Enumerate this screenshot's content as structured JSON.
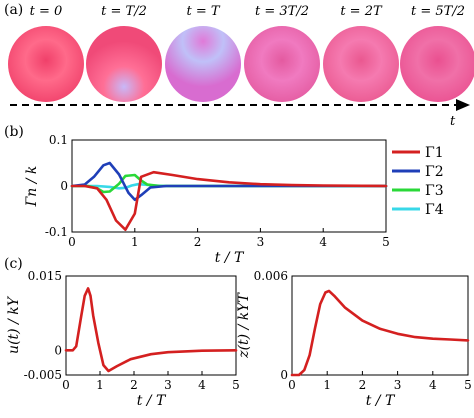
{
  "panel_a": {
    "label": "(a)",
    "time_labels": [
      "t = 0",
      "t = T/2",
      "t = T",
      "t = 3T/2",
      "t = 2T",
      "t = 5T/2"
    ],
    "time_axis_label": "t",
    "spheres": [
      {
        "base": "#f0406a",
        "light": "#ff6a8a",
        "spot": "#f0406a"
      },
      {
        "base": "#f04a78",
        "light": "#ff6f96",
        "spot": "#c8b8f8"
      },
      {
        "base": "#d86cd0",
        "light": "#c0c0f8",
        "spot": "#e07ad8"
      },
      {
        "base": "#e45aa0",
        "light": "#f07ac0",
        "spot": "#e45aa0"
      },
      {
        "base": "#ea5890",
        "light": "#f57ab0",
        "spot": "#ea5890"
      },
      {
        "base": "#ea5090",
        "light": "#f070a8",
        "spot": "#ea5090"
      }
    ]
  },
  "panel_b_label": "(b)",
  "panel_c_label": "(c)",
  "chart_data": [
    {
      "id": "b",
      "type": "line",
      "xlabel": "t / T",
      "ylabel": "Γn / k",
      "xlim": [
        0,
        5
      ],
      "ylim": [
        -0.1,
        0.1
      ],
      "xticks": [
        "0",
        "1",
        "2",
        "3",
        "4",
        "5"
      ],
      "yticks": [
        "0.1",
        "0",
        "-0.1"
      ],
      "legend_position": "right",
      "series": [
        {
          "name": "Γ1",
          "color": "#d42020",
          "x": [
            0,
            0.2,
            0.4,
            0.55,
            0.7,
            0.85,
            1.0,
            1.1,
            1.3,
            1.6,
            2.0,
            2.5,
            3.0,
            3.5,
            4.0,
            5.0
          ],
          "y": [
            0,
            0,
            -0.005,
            -0.03,
            -0.075,
            -0.095,
            -0.06,
            0.02,
            0.03,
            0.024,
            0.015,
            0.008,
            0.004,
            0.002,
            0.001,
            0
          ]
        },
        {
          "name": "Γ2",
          "color": "#1f3fb8",
          "x": [
            0,
            0.2,
            0.35,
            0.5,
            0.6,
            0.75,
            0.9,
            1.0,
            1.1,
            1.25,
            1.5,
            5.0
          ],
          "y": [
            0,
            0.003,
            0.02,
            0.045,
            0.05,
            0.025,
            -0.015,
            -0.03,
            -0.02,
            -0.003,
            0,
            0
          ]
        },
        {
          "name": "Γ3",
          "color": "#2ad838",
          "x": [
            0,
            0.25,
            0.4,
            0.5,
            0.6,
            0.75,
            0.85,
            1.0,
            1.1,
            1.2,
            1.4,
            5.0
          ],
          "y": [
            0,
            0,
            -0.005,
            -0.013,
            -0.012,
            0.005,
            0.022,
            0.024,
            0.012,
            0.003,
            0,
            0
          ]
        },
        {
          "name": "Γ4",
          "color": "#38d8e8",
          "x": [
            0,
            0.4,
            0.6,
            0.75,
            0.85,
            0.95,
            1.05,
            1.15,
            1.3,
            1.5,
            5.0
          ],
          "y": [
            0,
            0,
            -0.002,
            -0.005,
            -0.004,
            0.001,
            0.004,
            0.003,
            0.001,
            0,
            0
          ]
        }
      ]
    },
    {
      "id": "c1",
      "type": "line",
      "xlabel": "t / T",
      "ylabel": "u(t) / kY",
      "xlim": [
        0,
        5
      ],
      "ylim": [
        -0.005,
        0.015
      ],
      "xticks": [
        "0",
        "1",
        "2",
        "3",
        "4",
        "5"
      ],
      "yticks": [
        "0.015",
        "0",
        "-0.005"
      ],
      "series": [
        {
          "name": "",
          "color": "#d42020",
          "x": [
            0,
            0.2,
            0.3,
            0.45,
            0.55,
            0.65,
            0.72,
            0.8,
            0.95,
            1.1,
            1.25,
            1.5,
            1.9,
            2.5,
            3.0,
            4.0,
            5.0
          ],
          "y": [
            0,
            0,
            0.0008,
            0.007,
            0.011,
            0.0125,
            0.011,
            0.007,
            0.0015,
            -0.003,
            -0.0042,
            -0.0032,
            -0.0018,
            -0.0008,
            -0.0004,
            -0.0001,
            0
          ]
        }
      ]
    },
    {
      "id": "c2",
      "type": "line",
      "xlabel": "t / T",
      "ylabel": "z(t) / kYT",
      "xlim": [
        0,
        5
      ],
      "ylim": [
        0,
        0.006
      ],
      "xticks": [
        "0",
        "1",
        "2",
        "3",
        "4",
        "5"
      ],
      "yticks": [
        "0.006",
        "0"
      ],
      "series": [
        {
          "name": "",
          "color": "#d42020",
          "x": [
            0,
            0.2,
            0.35,
            0.5,
            0.65,
            0.8,
            0.95,
            1.05,
            1.2,
            1.5,
            2.0,
            2.5,
            3.0,
            3.5,
            4.0,
            4.5,
            5.0
          ],
          "y": [
            0,
            0,
            0.0003,
            0.0012,
            0.0028,
            0.0043,
            0.005,
            0.0051,
            0.0048,
            0.0041,
            0.0033,
            0.0028,
            0.0025,
            0.0023,
            0.0022,
            0.00215,
            0.0021
          ]
        }
      ]
    }
  ]
}
